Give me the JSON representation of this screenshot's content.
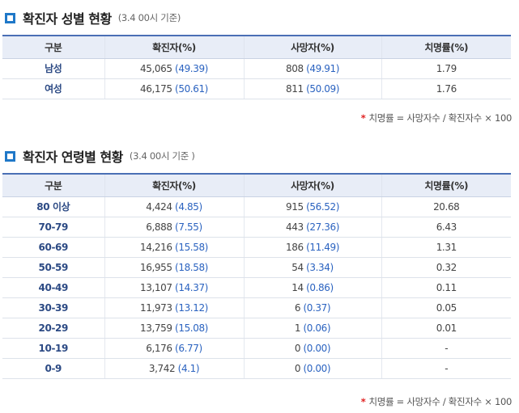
{
  "gender": {
    "title": "확진자 성별 현황",
    "subtitle": "(3.4 00시 기준)",
    "headers": [
      "구분",
      "확진자(%)",
      "사망자(%)",
      "치명률(%)"
    ],
    "rows": [
      {
        "label": "남성",
        "confirmed": "45,065",
        "confirmed_pct": "(49.39)",
        "deaths": "808",
        "deaths_pct": "(49.91)",
        "rate": "1.79"
      },
      {
        "label": "여성",
        "confirmed": "46,175",
        "confirmed_pct": "(50.61)",
        "deaths": "811",
        "deaths_pct": "(50.09)",
        "rate": "1.76"
      }
    ],
    "footnote_star": "*",
    "footnote": "치명률 = 사망자수 / 확진자수 × 100"
  },
  "age": {
    "title": "확진자 연령별 현황",
    "subtitle": "(3.4 00시 기준 )",
    "headers": [
      "구분",
      "확진자(%)",
      "사망자(%)",
      "치명률(%)"
    ],
    "rows": [
      {
        "label": "80 이상",
        "confirmed": "4,424",
        "confirmed_pct": "(4.85)",
        "deaths": "915",
        "deaths_pct": "(56.52)",
        "rate": "20.68"
      },
      {
        "label": "70-79",
        "confirmed": "6,888",
        "confirmed_pct": "(7.55)",
        "deaths": "443",
        "deaths_pct": "(27.36)",
        "rate": "6.43"
      },
      {
        "label": "60-69",
        "confirmed": "14,216",
        "confirmed_pct": "(15.58)",
        "deaths": "186",
        "deaths_pct": "(11.49)",
        "rate": "1.31"
      },
      {
        "label": "50-59",
        "confirmed": "16,955",
        "confirmed_pct": "(18.58)",
        "deaths": "54",
        "deaths_pct": "(3.34)",
        "rate": "0.32"
      },
      {
        "label": "40-49",
        "confirmed": "13,107",
        "confirmed_pct": "(14.37)",
        "deaths": "14",
        "deaths_pct": "(0.86)",
        "rate": "0.11"
      },
      {
        "label": "30-39",
        "confirmed": "11,973",
        "confirmed_pct": "(13.12)",
        "deaths": "6",
        "deaths_pct": "(0.37)",
        "rate": "0.05"
      },
      {
        "label": "20-29",
        "confirmed": "13,759",
        "confirmed_pct": "(15.08)",
        "deaths": "1",
        "deaths_pct": "(0.06)",
        "rate": "0.01"
      },
      {
        "label": "10-19",
        "confirmed": "6,176",
        "confirmed_pct": "(6.77)",
        "deaths": "0",
        "deaths_pct": "(0.00)",
        "rate": "-"
      },
      {
        "label": "0-9",
        "confirmed": "3,742",
        "confirmed_pct": "(4.1)",
        "deaths": "0",
        "deaths_pct": "(0.00)",
        "rate": "-"
      }
    ],
    "footnote_star": "*",
    "footnote": "치명률 = 사망자수 / 확진자수 × 100"
  },
  "colors": {
    "accent": "#1f78c8",
    "header_bg": "#e8edf7",
    "value_blue": "#2b63c0",
    "footnote_star": "#e02020"
  }
}
